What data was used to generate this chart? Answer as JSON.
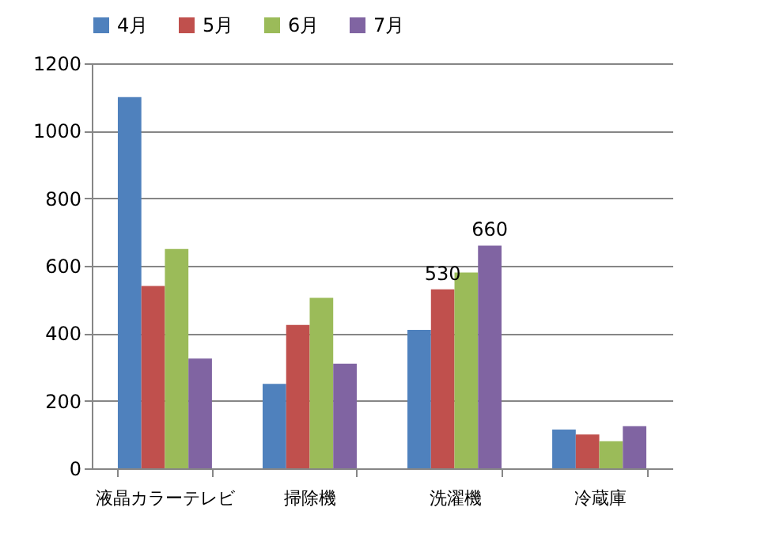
{
  "chart_data": {
    "type": "bar",
    "categories": [
      "液晶カラーテレビ",
      "掃除機",
      "洗濯機",
      "冷蔵庫"
    ],
    "series": [
      {
        "name": "4月",
        "color": "#4f81bd",
        "values": [
          1100,
          250,
          410,
          115
        ]
      },
      {
        "name": "5月",
        "color": "#c0504d",
        "values": [
          540,
          425,
          530,
          100
        ],
        "value_labels": [
          null,
          null,
          "530",
          null
        ]
      },
      {
        "name": "6月",
        "color": "#9bbb59",
        "values": [
          650,
          505,
          580,
          80
        ]
      },
      {
        "name": "7月",
        "color": "#8064a2",
        "values": [
          325,
          310,
          660,
          125
        ],
        "value_labels": [
          null,
          null,
          "660",
          null
        ]
      }
    ],
    "ylim": [
      0,
      1200
    ],
    "yticks": [
      0,
      200,
      400,
      600,
      800,
      1000,
      1200
    ],
    "grid": "y",
    "legend": "top"
  }
}
